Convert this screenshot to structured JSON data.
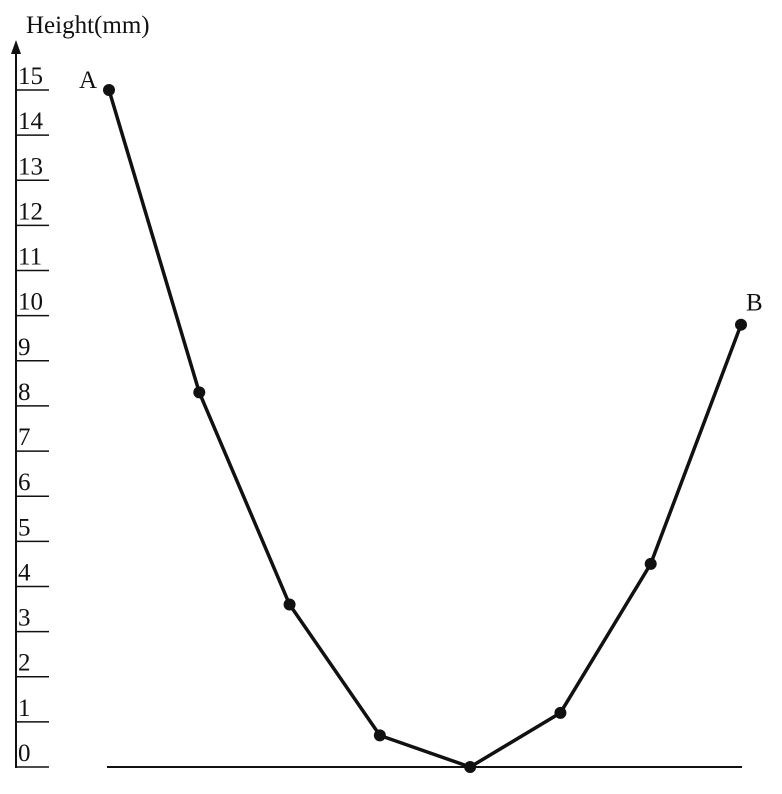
{
  "chart_data": {
    "type": "line",
    "y_label": "Height(mm)",
    "categories": [
      null,
      null,
      null,
      null,
      null,
      null,
      null,
      null
    ],
    "series": [
      {
        "name": null,
        "color": "#111111",
        "values": [
          15,
          8.3,
          3.6,
          0.7,
          0,
          1.2,
          4.5,
          9.8
        ]
      }
    ],
    "annotations": [
      "A",
      "B"
    ],
    "ylim": [
      0,
      15
    ],
    "yticks": [
      0,
      1,
      2,
      3,
      4,
      5,
      6,
      7,
      8,
      9,
      10,
      11,
      12,
      13,
      14,
      15
    ]
  }
}
